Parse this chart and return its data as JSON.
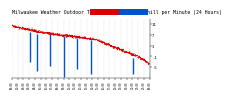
{
  "title": "Milwaukee Weather Outdoor Temperature vs Wind Chill per Minute (24 Hours)",
  "title_fontsize": 3.5,
  "background_color": "#ffffff",
  "plot_bg_color": "#ffffff",
  "temp_color": "#dd0000",
  "windchill_color": "#0055cc",
  "legend_temp_color": "#dd0000",
  "legend_wc_color": "#0055cc",
  "ylabel_right_labels": [
    "11",
    "7",
    "3",
    "-1",
    "-5"
  ],
  "ylabel_right_values": [
    11,
    7,
    3,
    -1,
    -5
  ],
  "ylim": [
    -9,
    13
  ],
  "xlim": [
    0,
    1440
  ],
  "grid_color": "#bbbbbb",
  "spike_positions": [
    185,
    265,
    400,
    545,
    685,
    830,
    1270
  ],
  "spike_tops": [
    8.2,
    7.5,
    7.2,
    6.5,
    6.0,
    5.2,
    -1.5
  ],
  "spike_depths": [
    -3,
    -6.5,
    -4.5,
    -8.5,
    -5.5,
    -7.5,
    -7.5
  ]
}
